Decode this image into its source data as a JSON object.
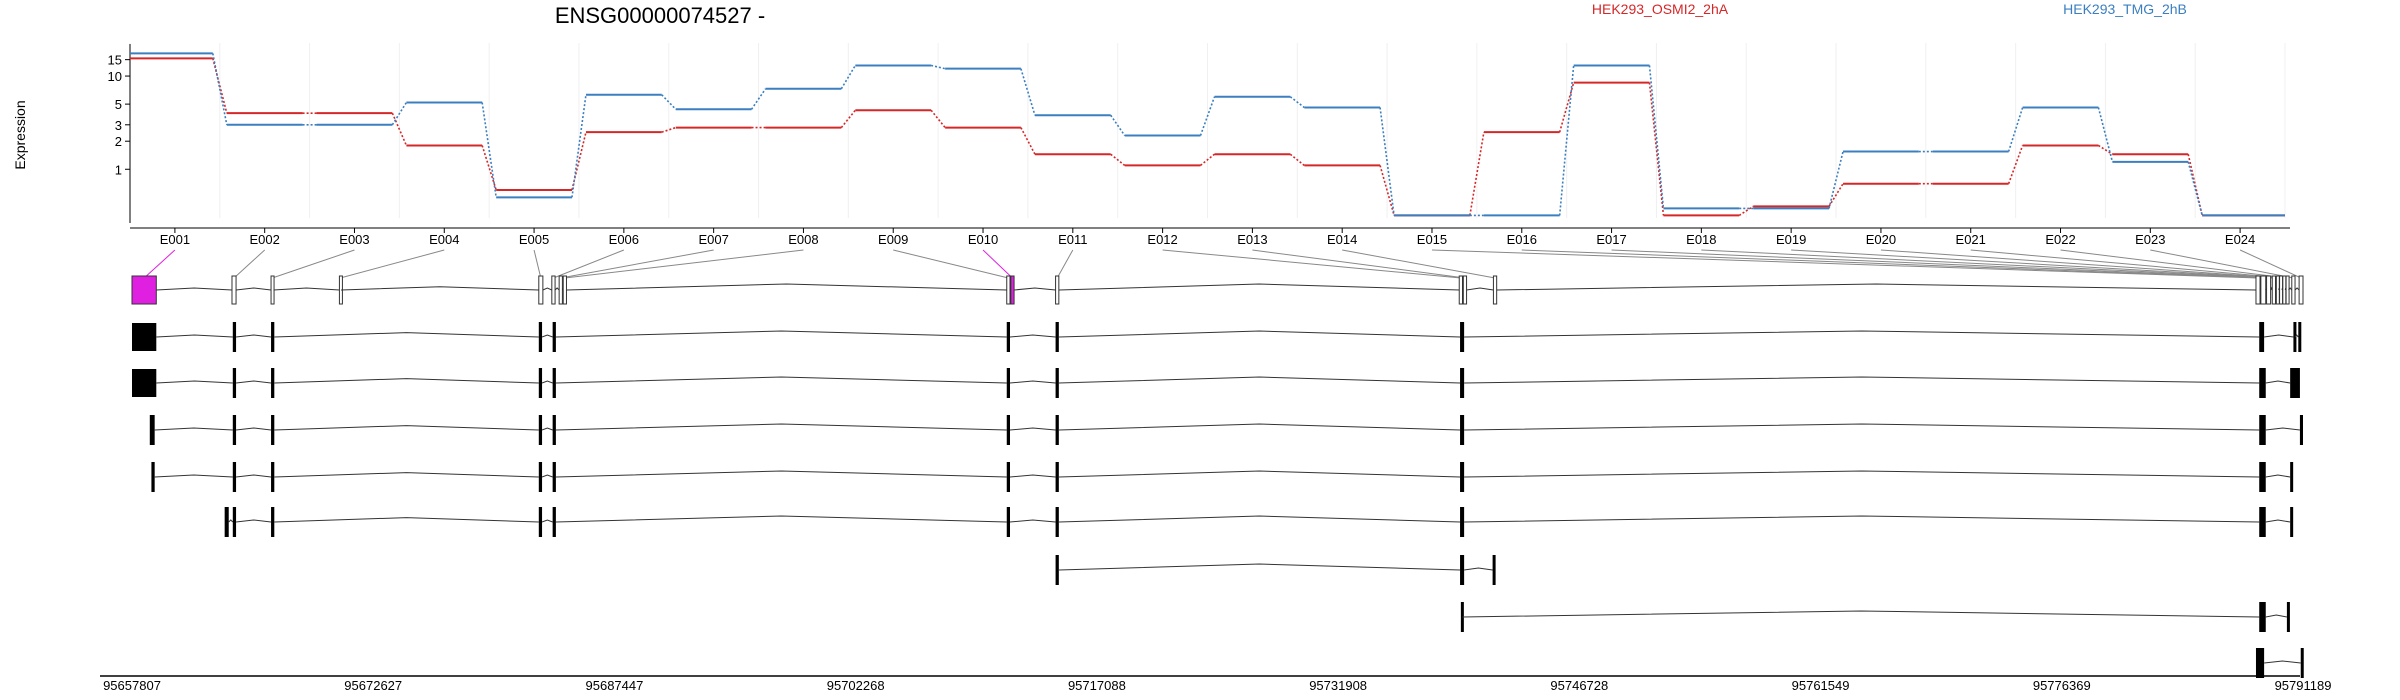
{
  "chart_data": {
    "type": "line",
    "title": "ENSG00000074527 -",
    "ylabel": "Expression",
    "yscale": "log",
    "yticks": [
      1,
      2,
      3,
      5,
      10,
      15
    ],
    "ylim": [
      0.3,
      20
    ],
    "grid": false,
    "legend_placement": "top-right",
    "categories": [
      "E001",
      "E002",
      "E003",
      "E004",
      "E005",
      "E006",
      "E007",
      "E008",
      "E009",
      "E010",
      "E011",
      "E012",
      "E013",
      "E014",
      "E015",
      "E016",
      "E017",
      "E018",
      "E019",
      "E020",
      "E021",
      "E022",
      "E023",
      "E024"
    ],
    "series": [
      {
        "name": "HEK293_OSMI2_2hA",
        "color": "#d62728",
        "values": [
          15.5,
          4,
          4,
          1.8,
          0.6,
          2.5,
          2.8,
          2.8,
          4.3,
          2.8,
          1.45,
          1.1,
          1.45,
          1.1,
          0.32,
          2.5,
          8.5,
          0.32,
          0.4,
          0.7,
          0.7,
          1.8,
          1.45,
          0.32
        ]
      },
      {
        "name": "HEK293_TMG_2hB",
        "color": "#3b7fc0",
        "values": [
          17.5,
          3,
          3,
          5.2,
          0.5,
          6.3,
          4.4,
          7.3,
          13,
          12,
          3.8,
          2.3,
          6,
          4.6,
          0.32,
          0.32,
          13,
          0.38,
          0.38,
          1.55,
          1.55,
          4.6,
          1.2,
          0.32
        ]
      }
    ],
    "genomic_coordinates": [
      "95657807",
      "95672627",
      "95687447",
      "95702268",
      "95717088",
      "95731908",
      "95746728",
      "95761549",
      "95776369",
      "95791189"
    ],
    "highlight_color": "#e020e0",
    "highlighted_exons": [
      "E001",
      "E010"
    ]
  }
}
